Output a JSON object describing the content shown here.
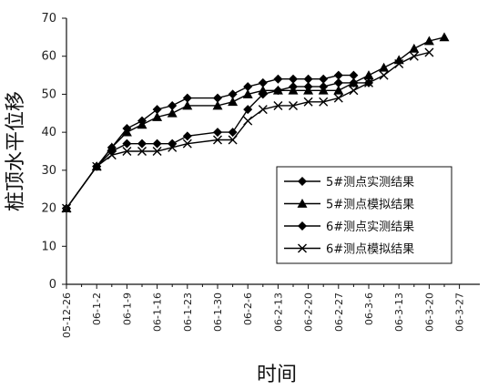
{
  "chart_data": {
    "type": "line",
    "xlabel": "时间",
    "ylabel": "桩顶水平位移",
    "ylim": [
      0,
      70
    ],
    "y_ticks": [
      0,
      10,
      20,
      30,
      40,
      50,
      60,
      70
    ],
    "x_tick_labels": [
      "05-12-26",
      "06-1-2",
      "06-1-9",
      "06-1-16",
      "06-1-23",
      "06-1-30",
      "06-2-6",
      "06-2-13",
      "06-2-20",
      "06-2-27",
      "06-3-6",
      "06-3-13",
      "06-3-20",
      "06-3-27"
    ],
    "grid": false,
    "legend_position": "bottom-right",
    "series": [
      {
        "name": "5#测点实测结果",
        "marker": "diamond",
        "points": [
          [
            0,
            20
          ],
          [
            1,
            31
          ],
          [
            1.5,
            35
          ],
          [
            2,
            37
          ],
          [
            2.5,
            37
          ],
          [
            3,
            37
          ],
          [
            3.5,
            37
          ],
          [
            4,
            39
          ],
          [
            5,
            40
          ],
          [
            5.5,
            40
          ],
          [
            6,
            46
          ],
          [
            6.5,
            50
          ],
          [
            7,
            51
          ],
          [
            7.5,
            52
          ],
          [
            8,
            52
          ],
          [
            8.5,
            52
          ],
          [
            9,
            53
          ],
          [
            9.5,
            53
          ],
          [
            10,
            53
          ]
        ]
      },
      {
        "name": "5#测点模拟结果",
        "marker": "triangle",
        "points": [
          [
            0,
            20
          ],
          [
            1,
            31
          ],
          [
            1.5,
            36
          ],
          [
            2,
            40
          ],
          [
            2.5,
            42
          ],
          [
            3,
            44
          ],
          [
            3.5,
            45
          ],
          [
            4,
            47
          ],
          [
            5,
            47
          ],
          [
            5.5,
            48
          ],
          [
            6,
            50
          ],
          [
            6.5,
            51
          ],
          [
            7,
            51
          ],
          [
            7.5,
            51
          ],
          [
            8,
            51
          ],
          [
            8.5,
            51
          ],
          [
            9,
            51
          ],
          [
            9.5,
            53
          ],
          [
            10,
            55
          ],
          [
            10.5,
            57
          ],
          [
            11,
            59
          ],
          [
            11.5,
            62
          ],
          [
            12,
            64
          ],
          [
            12.5,
            65
          ]
        ]
      },
      {
        "name": "6#测点实测结果",
        "marker": "diamond",
        "points": [
          [
            0,
            20
          ],
          [
            1,
            31
          ],
          [
            1.5,
            36
          ],
          [
            2,
            41
          ],
          [
            2.5,
            43
          ],
          [
            3,
            46
          ],
          [
            3.5,
            47
          ],
          [
            4,
            49
          ],
          [
            5,
            49
          ],
          [
            5.5,
            50
          ],
          [
            6,
            52
          ],
          [
            6.5,
            53
          ],
          [
            7,
            54
          ],
          [
            7.5,
            54
          ],
          [
            8,
            54
          ],
          [
            8.5,
            54
          ],
          [
            9,
            55
          ],
          [
            9.5,
            55
          ]
        ]
      },
      {
        "name": "6#测点模拟结果",
        "marker": "x",
        "points": [
          [
            0,
            20
          ],
          [
            1,
            31
          ],
          [
            1.5,
            34
          ],
          [
            2,
            35
          ],
          [
            2.5,
            35
          ],
          [
            3,
            35
          ],
          [
            3.5,
            36
          ],
          [
            4,
            37
          ],
          [
            5,
            38
          ],
          [
            5.5,
            38
          ],
          [
            6,
            43
          ],
          [
            6.5,
            46
          ],
          [
            7,
            47
          ],
          [
            7.5,
            47
          ],
          [
            8,
            48
          ],
          [
            8.5,
            48
          ],
          [
            9,
            49
          ],
          [
            9.5,
            51
          ],
          [
            10,
            53
          ],
          [
            10.5,
            55
          ],
          [
            11,
            58
          ],
          [
            11.5,
            60
          ],
          [
            12,
            61
          ]
        ]
      }
    ]
  }
}
